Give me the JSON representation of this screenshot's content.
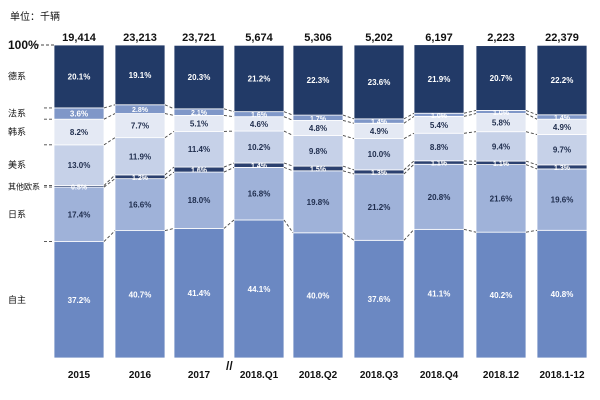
{
  "chart_data": {
    "type": "bar",
    "unit_label": "单位：千辆",
    "hundred_percent_label": "100%",
    "break_marker": "//",
    "categories": [
      "2015",
      "2016",
      "2017",
      "2018.Q1",
      "2018.Q2",
      "2018.Q3",
      "2018.Q4",
      "2018.12",
      "2018.1-12"
    ],
    "totals": [
      "19,414",
      "23,213",
      "23,721",
      "5,674",
      "5,306",
      "5,202",
      "6,197",
      "2,223",
      "22,379"
    ],
    "series": [
      {
        "name": "自主",
        "color": "#6b88c2",
        "text_color": "#ffffff",
        "values": [
          37.2,
          40.7,
          41.4,
          44.1,
          40.0,
          37.6,
          41.1,
          40.2,
          40.8
        ]
      },
      {
        "name": "日系",
        "color": "#9fb2d9",
        "text_color": "#1f2d4d",
        "values": [
          17.4,
          16.6,
          18.0,
          16.8,
          19.8,
          21.2,
          20.8,
          21.6,
          19.6
        ]
      },
      {
        "name": "其他欧系",
        "color": "#2b406f",
        "text_color": "#ffffff",
        "values": [
          0.5,
          1.2,
          1.6,
          1.4,
          1.5,
          1.3,
          1.1,
          1.1,
          1.3
        ]
      },
      {
        "name": "美系",
        "color": "#c6d1e8",
        "text_color": "#1f2d4d",
        "values": [
          13.0,
          11.9,
          11.4,
          10.2,
          9.8,
          10.0,
          8.8,
          9.4,
          9.7
        ]
      },
      {
        "name": "韩系",
        "color": "#e4e9f4",
        "text_color": "#1f2d4d",
        "values": [
          8.2,
          7.7,
          5.1,
          4.6,
          4.8,
          4.9,
          5.4,
          5.8,
          4.9
        ]
      },
      {
        "name": "法系",
        "color": "#7f97c8",
        "text_color": "#ffffff",
        "values": [
          3.6,
          2.8,
          2.1,
          1.6,
          1.7,
          1.4,
          1.0,
          1.0,
          1.4
        ]
      },
      {
        "name": "德系",
        "color": "#223a67",
        "text_color": "#ffffff",
        "values": [
          20.1,
          19.1,
          20.3,
          21.2,
          22.3,
          23.6,
          21.9,
          20.7,
          22.2
        ]
      }
    ]
  }
}
